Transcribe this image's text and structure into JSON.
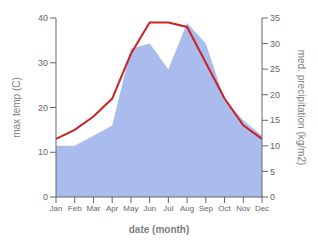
{
  "chart_data": {
    "type": "line",
    "categories": [
      "Jan",
      "Feb",
      "Mar",
      "Apr",
      "May",
      "Jun",
      "Jul",
      "Aug",
      "Sep",
      "Oct",
      "Nov",
      "Dec"
    ],
    "series": [
      {
        "type": "area",
        "axis": "y2",
        "color": "#aabbee",
        "values": [
          10,
          10,
          12,
          14,
          29,
          30,
          25,
          34,
          30,
          19,
          15,
          12
        ]
      },
      {
        "type": "line",
        "color": "#cc2222",
        "values": [
          13,
          15,
          18,
          22,
          32,
          39,
          39,
          38,
          30,
          22,
          16,
          13
        ]
      }
    ],
    "x_label": "date (month)",
    "y_label": "max temp (C)",
    "y2_label": "med. precipitation (kg/m2)",
    "ylim": [
      0,
      40
    ],
    "yticks": [
      0,
      10,
      20,
      30,
      40
    ],
    "y2lim": [
      0,
      35
    ],
    "y2ticks": [
      0,
      5,
      10,
      15,
      20,
      25,
      30,
      35
    ],
    "grid": false
  }
}
